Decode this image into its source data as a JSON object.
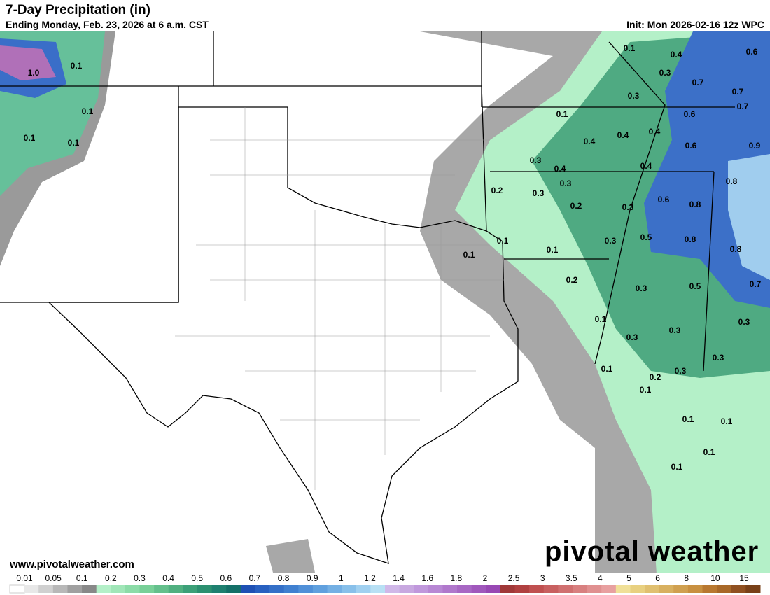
{
  "header": {
    "title": "7-Day Precipitation (in)",
    "subtitle": "Ending Monday, Feb. 23, 2026 at 6 a.m. CST",
    "init": "Init: Mon 2026-02-16 12z WPC"
  },
  "map": {
    "labels": [
      "0.1",
      "0.4",
      "0.6",
      "0.3",
      "0.7",
      "0.3",
      "0.7",
      "0.7",
      "0.1",
      "0.6",
      "0.4",
      "0.4",
      "0.4",
      "0.6",
      "0.9",
      "0.3",
      "0.4",
      "0.4",
      "0.3",
      "0.2",
      "0.3",
      "0.8",
      "0.6",
      "0.8",
      "0.2",
      "0.3",
      "0.5",
      "0.8",
      "0.1",
      "0.3",
      "0.1",
      "0.1",
      "0.8",
      "0.2",
      "0.3",
      "0.5",
      "0.7",
      "0.1",
      "0.3",
      "0.3",
      "0.3",
      "0.3",
      "0.1",
      "0.2",
      "0.3",
      "0.1",
      "0.1",
      "0.1",
      "0.1",
      "0.1",
      "1.0",
      "0.1",
      "0.1",
      "0.1",
      "0.1"
    ]
  },
  "footer": {
    "website": "www.pivotalweather.com",
    "logo": "pivotal weather"
  },
  "legend": {
    "labels": [
      "0.01",
      "0.05",
      "0.1",
      "0.2",
      "0.3",
      "0.4",
      "0.5",
      "0.6",
      "0.7",
      "0.8",
      "0.9",
      "1",
      "1.2",
      "1.4",
      "1.6",
      "1.8",
      "2",
      "2.5",
      "3",
      "3.5",
      "4",
      "5",
      "6",
      "8",
      "10",
      "15"
    ],
    "colors": [
      "#ffffff",
      "#e8e8e8",
      "#d0d0d0",
      "#b8b8b8",
      "#a0a0a0",
      "#888888",
      "#b4f0c8",
      "#a0e6b8",
      "#8cdca8",
      "#78d098",
      "#64c08c",
      "#50b080",
      "#3ca078",
      "#2c9070",
      "#1e8070",
      "#147068",
      "#1e50b4",
      "#2860c0",
      "#3470c8",
      "#4080d0",
      "#5090d8",
      "#60a0de",
      "#74b0e4",
      "#88c0ea",
      "#a0d0f0",
      "#b8e0f4",
      "#d0b8e8",
      "#c8a8e0",
      "#c098dc",
      "#b888d4",
      "#b078cc",
      "#a868c4",
      "#a058bc",
      "#9848b4",
      "#a03838",
      "#b04040",
      "#c05050",
      "#c86060",
      "#d07070",
      "#d88080",
      "#e09090",
      "#e8a0a0",
      "#f0e098",
      "#e8d080",
      "#e0c070",
      "#d8b060",
      "#d0a050",
      "#c89040",
      "#b87830",
      "#a86828",
      "#905020",
      "#784018"
    ]
  }
}
